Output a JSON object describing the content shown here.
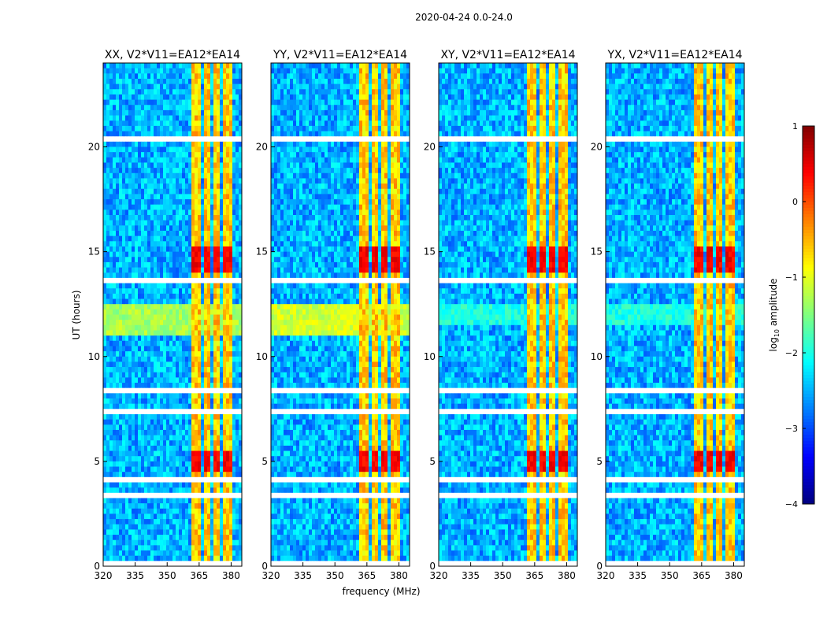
{
  "chart_data": {
    "type": "heatmap",
    "title": "2020-04-24 0.0-24.0",
    "xlabel": "frequency (MHz)",
    "ylabel": "UT (hours)",
    "xlim": [
      320,
      385
    ],
    "ylim": [
      0,
      24
    ],
    "xticks": [
      "320",
      "335",
      "350",
      "365",
      "380"
    ],
    "yticks": [
      "0",
      "5",
      "10",
      "15",
      "20"
    ],
    "colorbar": {
      "label": "log10 amplitude",
      "label_main": "log",
      "label_sub": "10",
      "label_rest": " amplitude",
      "range": [
        -4,
        1
      ],
      "ticks": [
        "1",
        "0",
        "−1",
        "−2",
        "−3",
        "−4"
      ],
      "colormap": "jet"
    },
    "model": {
      "background_level": -2.5,
      "band_mhz": [
        362,
        381
      ],
      "band_level": -0.8,
      "band_gaps_mhz": [
        366.5,
        371,
        375.5
      ],
      "flagged_hours": [
        [
          0.05,
          0.15
        ],
        [
          1.4,
          1.5
        ],
        [
          2.0,
          2.1
        ],
        [
          3.35,
          3.45
        ],
        [
          4.1,
          4.25
        ],
        [
          4.4,
          4.5
        ],
        [
          7.15,
          7.5
        ],
        [
          8.3,
          8.6
        ],
        [
          13.4,
          13.75
        ],
        [
          19.95,
          20.05
        ],
        [
          20.3,
          20.4
        ],
        [
          22.4,
          22.55
        ],
        [
          23.4,
          23.5
        ]
      ],
      "strong_hours": [
        [
          14.0,
          15.2
        ],
        [
          4.6,
          5.4
        ]
      ],
      "strong_level": 0.4
    },
    "panels": [
      {
        "title": "XX, V2*V11=EA12*EA14",
        "broadband_hours": [
          11.0,
          12.6
        ],
        "broadband_level": -1.3
      },
      {
        "title": "YY, V2*V11=EA12*EA14",
        "broadband_hours": [
          11.0,
          12.6
        ],
        "broadband_level": -1.1
      },
      {
        "title": "XY, V2*V11=EA12*EA14",
        "broadband_hours": [
          11.5,
          12.6
        ],
        "broadband_level": -2.0
      },
      {
        "title": "YX, V2*V11=EA12*EA14",
        "broadband_hours": [
          11.5,
          12.6
        ],
        "broadband_level": -2.0
      }
    ]
  }
}
